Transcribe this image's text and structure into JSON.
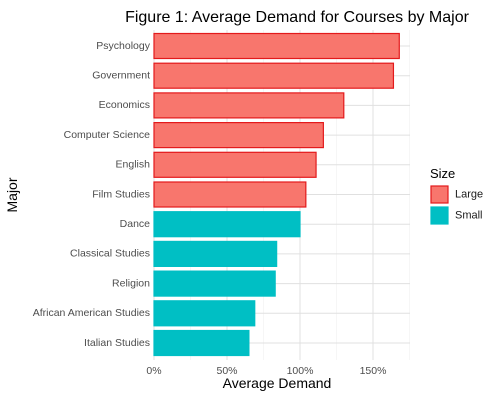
{
  "chart_data": {
    "type": "bar",
    "orientation": "horizontal",
    "title": "Figure 1: Average Demand for Courses by Major",
    "xlabel": "Average Demand",
    "ylabel": "Major",
    "xlim": [
      0,
      1.75
    ],
    "x_ticks": [
      {
        "value": 0,
        "label": "0%"
      },
      {
        "value": 0.5,
        "label": "50%"
      },
      {
        "value": 1.0,
        "label": "100%"
      },
      {
        "value": 1.5,
        "label": "150%"
      }
    ],
    "grid": true,
    "legend": {
      "title": "Size",
      "position": "right",
      "entries": [
        {
          "label": "Large",
          "fill": "#F8766D",
          "stroke": "#E31A1C"
        },
        {
          "label": "Small",
          "fill": "#00BFC4",
          "stroke": "#00BFC4"
        }
      ]
    },
    "categories": [
      "Psychology",
      "Government",
      "Economics",
      "Computer Science",
      "English",
      "Film Studies",
      "Dance",
      "Classical Studies",
      "Religion",
      "African American Studies",
      "Italian Studies"
    ],
    "values": [
      1.68,
      1.64,
      1.3,
      1.16,
      1.11,
      1.04,
      1.0,
      0.84,
      0.83,
      0.69,
      0.65
    ],
    "groups": [
      "Large",
      "Large",
      "Large",
      "Large",
      "Large",
      "Large",
      "Small",
      "Small",
      "Small",
      "Small",
      "Small"
    ]
  }
}
